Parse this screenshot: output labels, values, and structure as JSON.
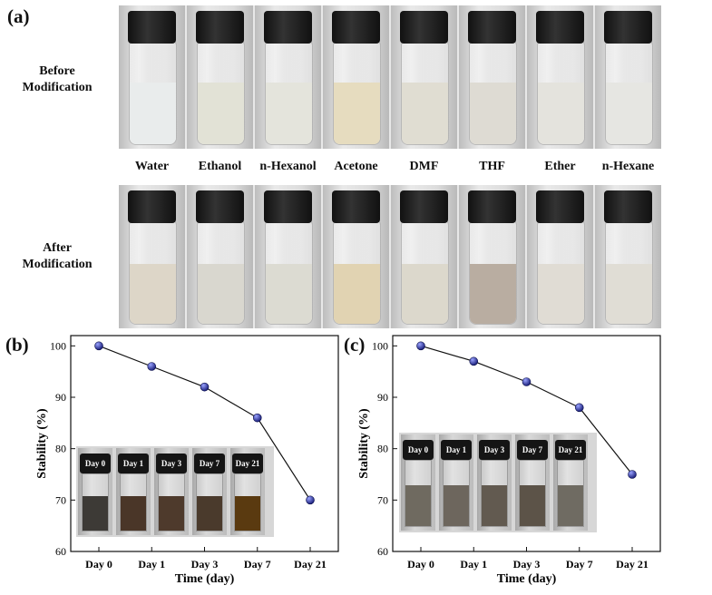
{
  "panel_a": {
    "label": "(a)",
    "before_label": [
      "Before",
      "Modification"
    ],
    "after_label": [
      "After",
      "Modification"
    ],
    "solvents": [
      "Water",
      "Ethanol",
      "n-Hexanol",
      "Acetone",
      "DMF",
      "THF",
      "Ether",
      "n-Hexane"
    ],
    "before_liquid_colors": [
      "#e9ecec",
      "#e2e2d6",
      "#e4e4dc",
      "#e6dcbf",
      "#e0ddd2",
      "#dedbd3",
      "#e4e3dd",
      "#e6e6e2"
    ],
    "after_liquid_colors": [
      "#ddd6c8",
      "#d9d7cf",
      "#dcdbd2",
      "#e1d3b2",
      "#dcd8cc",
      "#b9ada1",
      "#e0dcd4",
      "#e0ddd5"
    ]
  },
  "chart_data": [
    {
      "type": "line",
      "panel_label": "(b)",
      "categories": [
        "Day 0",
        "Day 1",
        "Day 3",
        "Day 7",
        "Day 21"
      ],
      "values": [
        100,
        96,
        92,
        86,
        70
      ],
      "xlabel": "Time (day)",
      "ylabel": "Stability (%)",
      "ylim": [
        60,
        102
      ],
      "yticks": [
        60,
        70,
        80,
        90,
        100
      ],
      "marker_color": "#1a1f7a",
      "inset_labels": [
        "Day 0",
        "Day 1",
        "Day 3",
        "Day 7",
        "Day 21"
      ],
      "inset_liquid_colors": [
        "#3d3a36",
        "#4a3628",
        "#4e3a2c",
        "#4a3a2c",
        "#5a3a10"
      ]
    },
    {
      "type": "line",
      "panel_label": "(c)",
      "categories": [
        "Day 0",
        "Day 1",
        "Day 3",
        "Day 7",
        "Day 21"
      ],
      "values": [
        100,
        97,
        93,
        88,
        75
      ],
      "xlabel": "Time (day)",
      "ylabel": "Stability (%)",
      "ylim": [
        60,
        102
      ],
      "yticks": [
        60,
        70,
        80,
        90,
        100
      ],
      "marker_color": "#1a1f7a",
      "inset_labels": [
        "Day 0",
        "Day 1",
        "Day 3",
        "Day 7",
        "Day 21"
      ],
      "inset_liquid_colors": [
        "#6f6a60",
        "#6d665d",
        "#625a50",
        "#5c5348",
        "#6f6b62"
      ]
    }
  ]
}
